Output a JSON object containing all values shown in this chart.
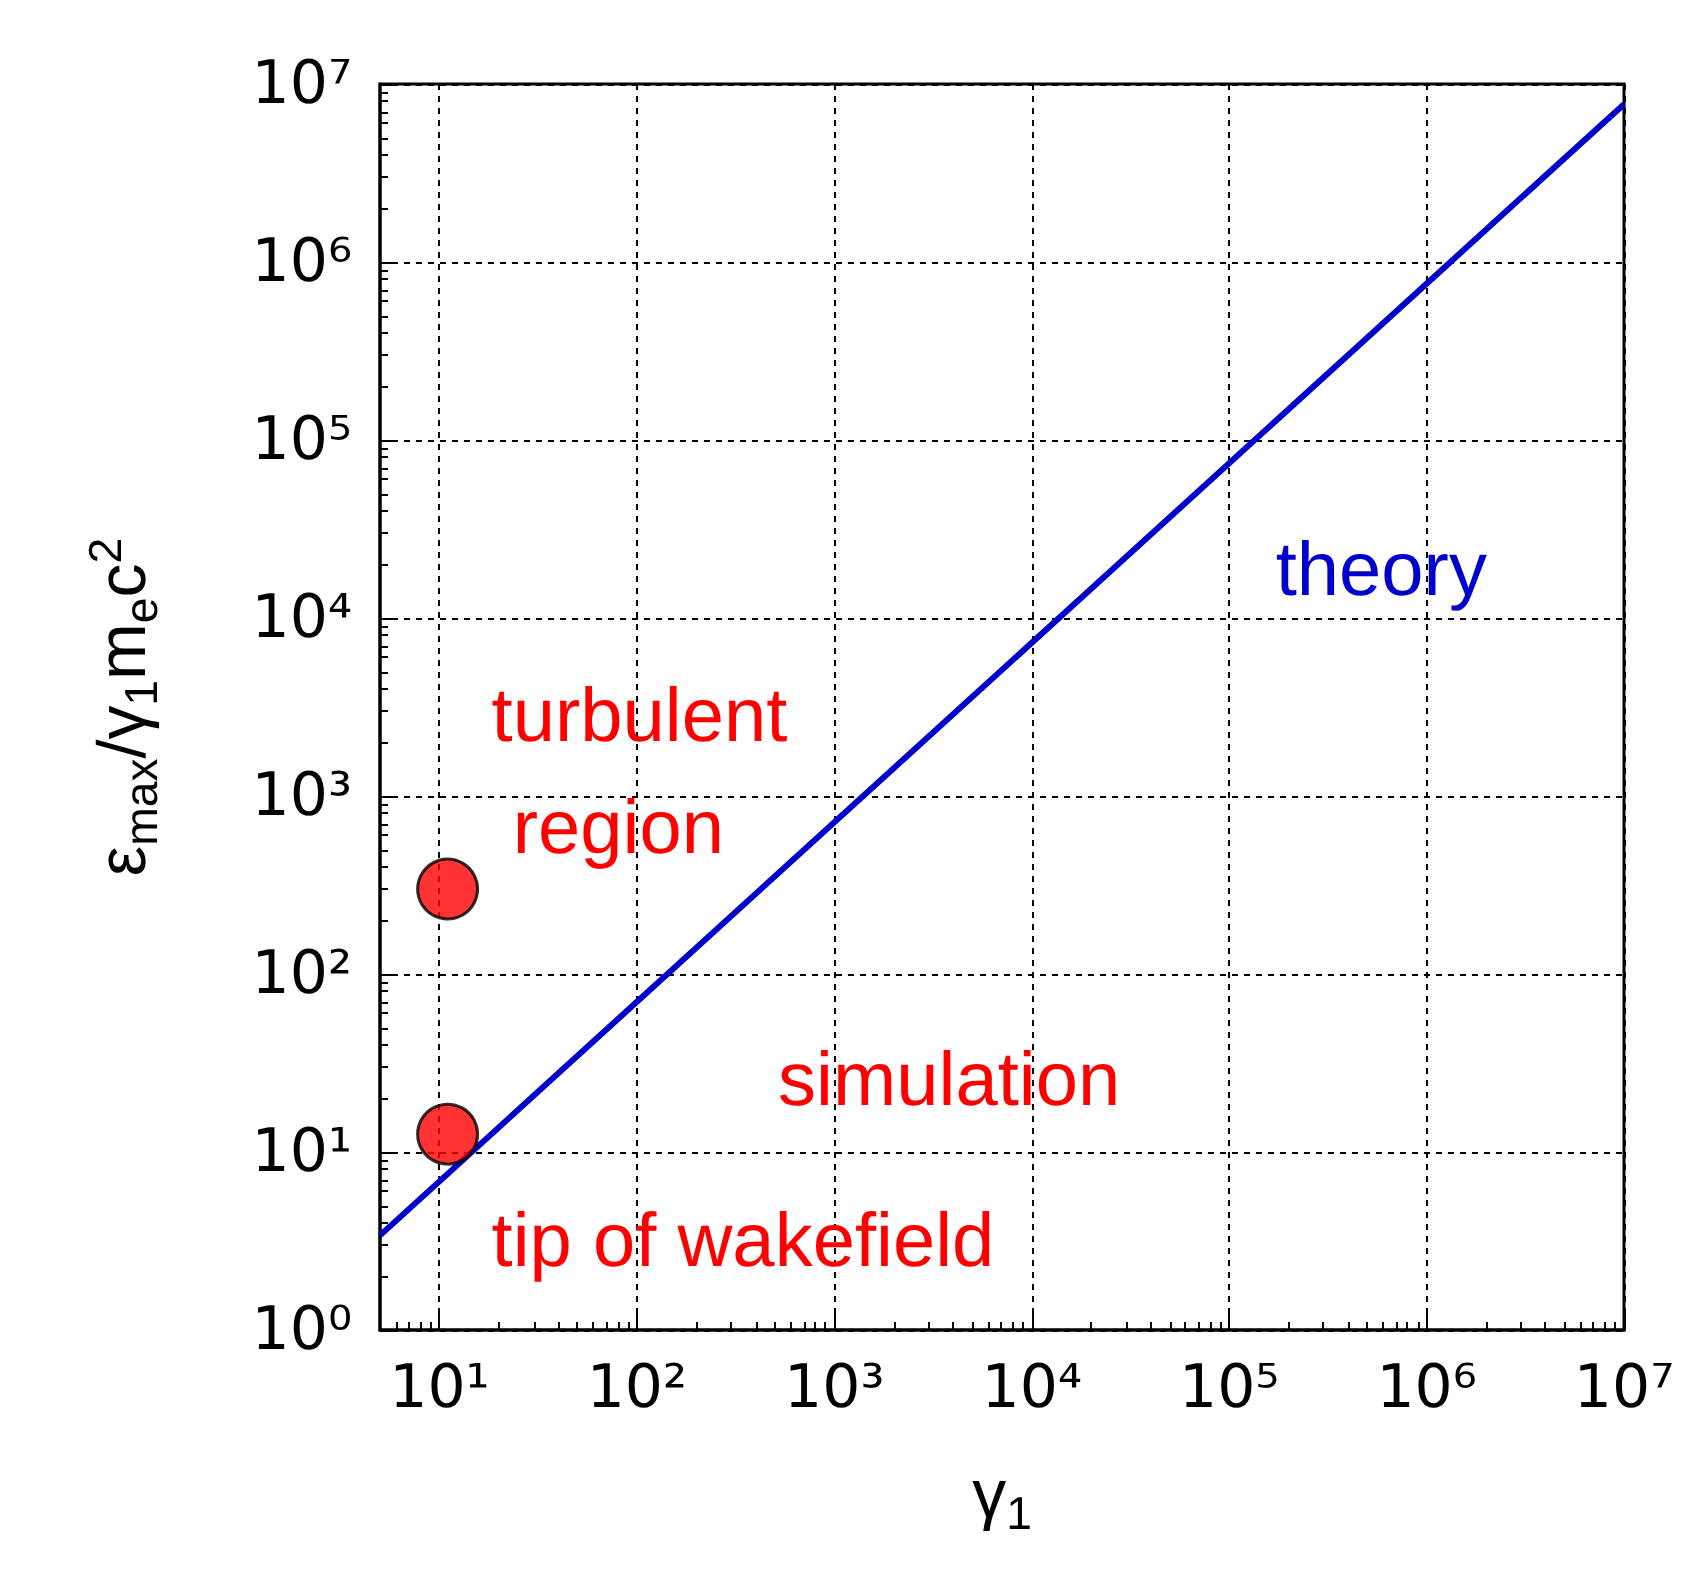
{
  "chart_data": {
    "type": "line",
    "xlabel": "γ$_{1}$",
    "ylabel": "ε$_{max}$/γ$_{1}$m$_{e}$c$^{2}$",
    "log": "xy",
    "grid": true,
    "xlim": [
      5,
      10000000
    ],
    "ylim": [
      1,
      10000000
    ],
    "xticks": [
      {
        "value": 10,
        "label": "10¹"
      },
      {
        "value": 100,
        "label": "10²"
      },
      {
        "value": 1000,
        "label": "10³"
      },
      {
        "value": 10000,
        "label": "10⁴"
      },
      {
        "value": 100000,
        "label": "10⁵"
      },
      {
        "value": 1000000,
        "label": "10⁶"
      },
      {
        "value": 10000000,
        "label": "10⁷"
      }
    ],
    "yticks": [
      {
        "value": 1,
        "label": "10⁰"
      },
      {
        "value": 10,
        "label": "10¹"
      },
      {
        "value": 100,
        "label": "10²"
      },
      {
        "value": 1000,
        "label": "10³"
      },
      {
        "value": 10000,
        "label": "10⁴"
      },
      {
        "value": 100000,
        "label": "10⁵"
      },
      {
        "value": 1000000,
        "label": "10⁶"
      },
      {
        "value": 10000000,
        "label": "10⁷"
      }
    ],
    "series": [
      {
        "name": "theory",
        "color": "#0000cc",
        "x": [
          5,
          10000000
        ],
        "values": [
          3.4,
          7700000
        ],
        "marker": "none",
        "line_style": "solid"
      },
      {
        "name": "simulation",
        "type": "scatter",
        "color": "#ff0000",
        "x": [
          11,
          11
        ],
        "values": [
          300,
          12.6
        ],
        "marker": "circle"
      }
    ],
    "annotations": [
      {
        "text": "turbulent region",
        "x": 11,
        "y": 300
      },
      {
        "text": "tip of wakefield",
        "x": 11,
        "y": 12.6
      }
    ]
  }
}
